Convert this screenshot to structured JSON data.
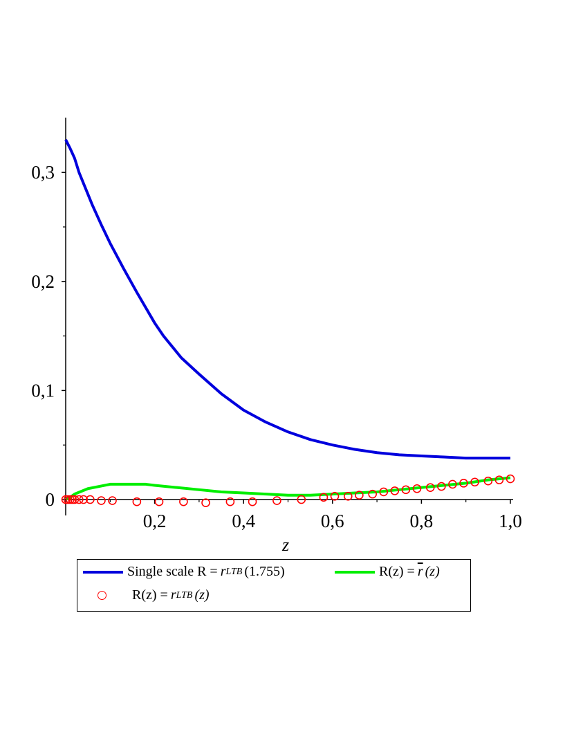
{
  "chart_data": {
    "type": "line",
    "xlabel": "z",
    "ylabel": "",
    "xlim": [
      0,
      1.0
    ],
    "ylim": [
      0,
      0.35
    ],
    "x_ticks": [
      0.2,
      0.4,
      0.6,
      0.8,
      1.0
    ],
    "x_tick_labels": [
      "0,2",
      "0,4",
      "0,6",
      "0,8",
      "1,0"
    ],
    "y_ticks": [
      0,
      0.1,
      0.2,
      0.3
    ],
    "y_tick_labels": [
      "0",
      "0,1",
      "0,2",
      "0,3"
    ],
    "grid": false,
    "legend_position": "bottom",
    "series": [
      {
        "name": "Single scale R = r_LTB(1.755)",
        "style": "line",
        "color": "#0000dd",
        "x": [
          0.0,
          0.01,
          0.02,
          0.03,
          0.04,
          0.06,
          0.08,
          0.1,
          0.13,
          0.16,
          0.2,
          0.22,
          0.26,
          0.3,
          0.35,
          0.4,
          0.45,
          0.5,
          0.55,
          0.6,
          0.65,
          0.7,
          0.75,
          0.8,
          0.85,
          0.9,
          0.95,
          1.0
        ],
        "y": [
          0.33,
          0.322,
          0.313,
          0.3,
          0.29,
          0.27,
          0.252,
          0.235,
          0.212,
          0.19,
          0.162,
          0.15,
          0.13,
          0.115,
          0.097,
          0.082,
          0.071,
          0.062,
          0.055,
          0.05,
          0.046,
          0.043,
          0.041,
          0.04,
          0.039,
          0.038,
          0.038,
          0.038
        ]
      },
      {
        "name": "R(z) = r̄(z)",
        "style": "line",
        "color": "#00ee00",
        "x": [
          0.0,
          0.01,
          0.02,
          0.05,
          0.1,
          0.15,
          0.18,
          0.2,
          0.25,
          0.3,
          0.35,
          0.4,
          0.45,
          0.5,
          0.55,
          0.6,
          0.65,
          0.7,
          0.75,
          0.8,
          0.85,
          0.9,
          0.95,
          1.0
        ],
        "y": [
          0.0,
          0.002,
          0.005,
          0.01,
          0.014,
          0.014,
          0.014,
          0.013,
          0.011,
          0.009,
          0.007,
          0.006,
          0.005,
          0.004,
          0.004,
          0.005,
          0.006,
          0.007,
          0.009,
          0.011,
          0.013,
          0.015,
          0.018,
          0.02
        ]
      },
      {
        "name": "R(z) = r_LTB(z)",
        "style": "markers",
        "color": "#ff0000",
        "x": [
          0.0,
          0.005,
          0.01,
          0.015,
          0.02,
          0.03,
          0.04,
          0.055,
          0.08,
          0.105,
          0.16,
          0.21,
          0.265,
          0.315,
          0.37,
          0.42,
          0.475,
          0.53,
          0.58,
          0.605,
          0.635,
          0.66,
          0.69,
          0.715,
          0.74,
          0.765,
          0.79,
          0.82,
          0.845,
          0.87,
          0.895,
          0.92,
          0.95,
          0.975,
          1.0
        ],
        "y": [
          0.0,
          0.0,
          0.0,
          0.0,
          0.0,
          0.0,
          0.0,
          0.0,
          -0.001,
          -0.001,
          -0.002,
          -0.002,
          -0.002,
          -0.003,
          -0.002,
          -0.002,
          -0.001,
          0.0,
          0.002,
          0.003,
          0.003,
          0.004,
          0.005,
          0.007,
          0.008,
          0.009,
          0.01,
          0.011,
          0.012,
          0.014,
          0.015,
          0.016,
          0.017,
          0.018,
          0.019
        ]
      }
    ]
  },
  "legend": {
    "entry1": {
      "text_a": "Single scale R =",
      "symbol": "r",
      "sub": "LTB",
      "text_b": "(1.755)"
    },
    "entry2": {
      "text_a": "R(z) =",
      "symbol": "r",
      "text_b": "(z)"
    },
    "entry3": {
      "text_a": "R(z) =",
      "symbol": "r",
      "sub": "LTB",
      "text_b": "(z)"
    }
  }
}
